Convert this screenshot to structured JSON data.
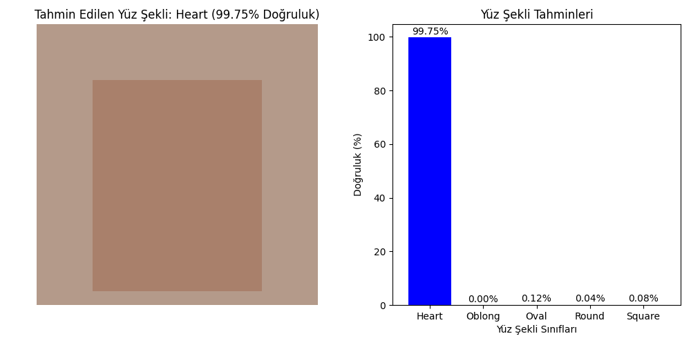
{
  "chart_data": [
    {
      "type": "image",
      "title": "Tahmin Edilen Yüz Şekli: Heart (99.75% Doğruluk)"
    },
    {
      "type": "bar",
      "title": "Yüz Şekli Tahminleri",
      "x_label": "Yüz Şekli Sınıfları",
      "y_label": "Doğruluk (%)",
      "categories": [
        "Heart",
        "Oblong",
        "Oval",
        "Round",
        "Square"
      ],
      "values": [
        99.75,
        0.0,
        0.12,
        0.04,
        0.08
      ],
      "value_labels": [
        "99.75%",
        "0.00%",
        "0.12%",
        "0.04%",
        "0.08%"
      ],
      "data_labels": true,
      "color": "blue",
      "ylim": [
        0,
        104.74
      ],
      "yticks": [
        0,
        20,
        40,
        60,
        80,
        100
      ],
      "grid": false
    }
  ]
}
